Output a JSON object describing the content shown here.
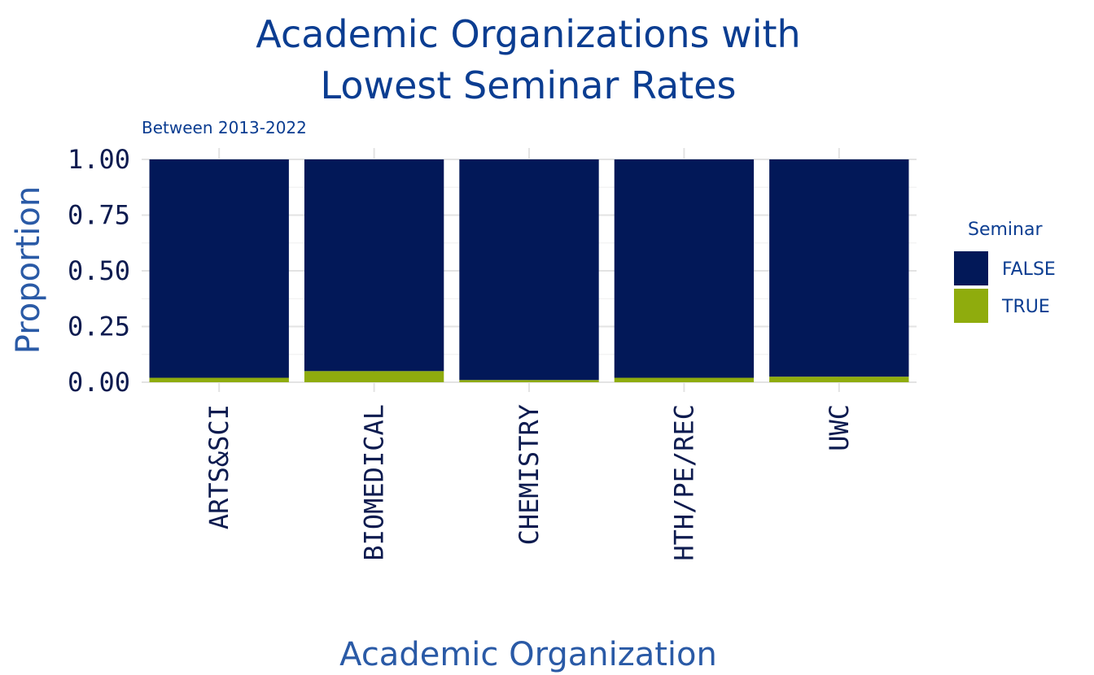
{
  "chart_data": {
    "type": "bar",
    "stacked": true,
    "title": "Academic Organizations with Lowest Seminar Rates",
    "title_lines": [
      "Academic Organizations with",
      "Lowest Seminar Rates"
    ],
    "subtitle": "Between 2013-2022",
    "xlabel": "Academic Organization",
    "ylabel": "Proportion",
    "ylim": [
      0,
      1
    ],
    "y_ticks": [
      "0.00",
      "0.25",
      "0.50",
      "0.75",
      "1.00"
    ],
    "grid": true,
    "legend": {
      "title": "Seminar",
      "position": "right"
    },
    "categories": [
      "ARTS&SCI",
      "BIOMEDICAL",
      "CHEMISTRY",
      "HTH/PE/REC",
      "UWC"
    ],
    "series": [
      {
        "name": "FALSE",
        "color": "#021858",
        "values": [
          0.98,
          0.95,
          0.99,
          0.98,
          0.975
        ]
      },
      {
        "name": "TRUE",
        "color": "#8fac0d",
        "values": [
          0.02,
          0.05,
          0.01,
          0.02,
          0.025
        ]
      }
    ]
  }
}
